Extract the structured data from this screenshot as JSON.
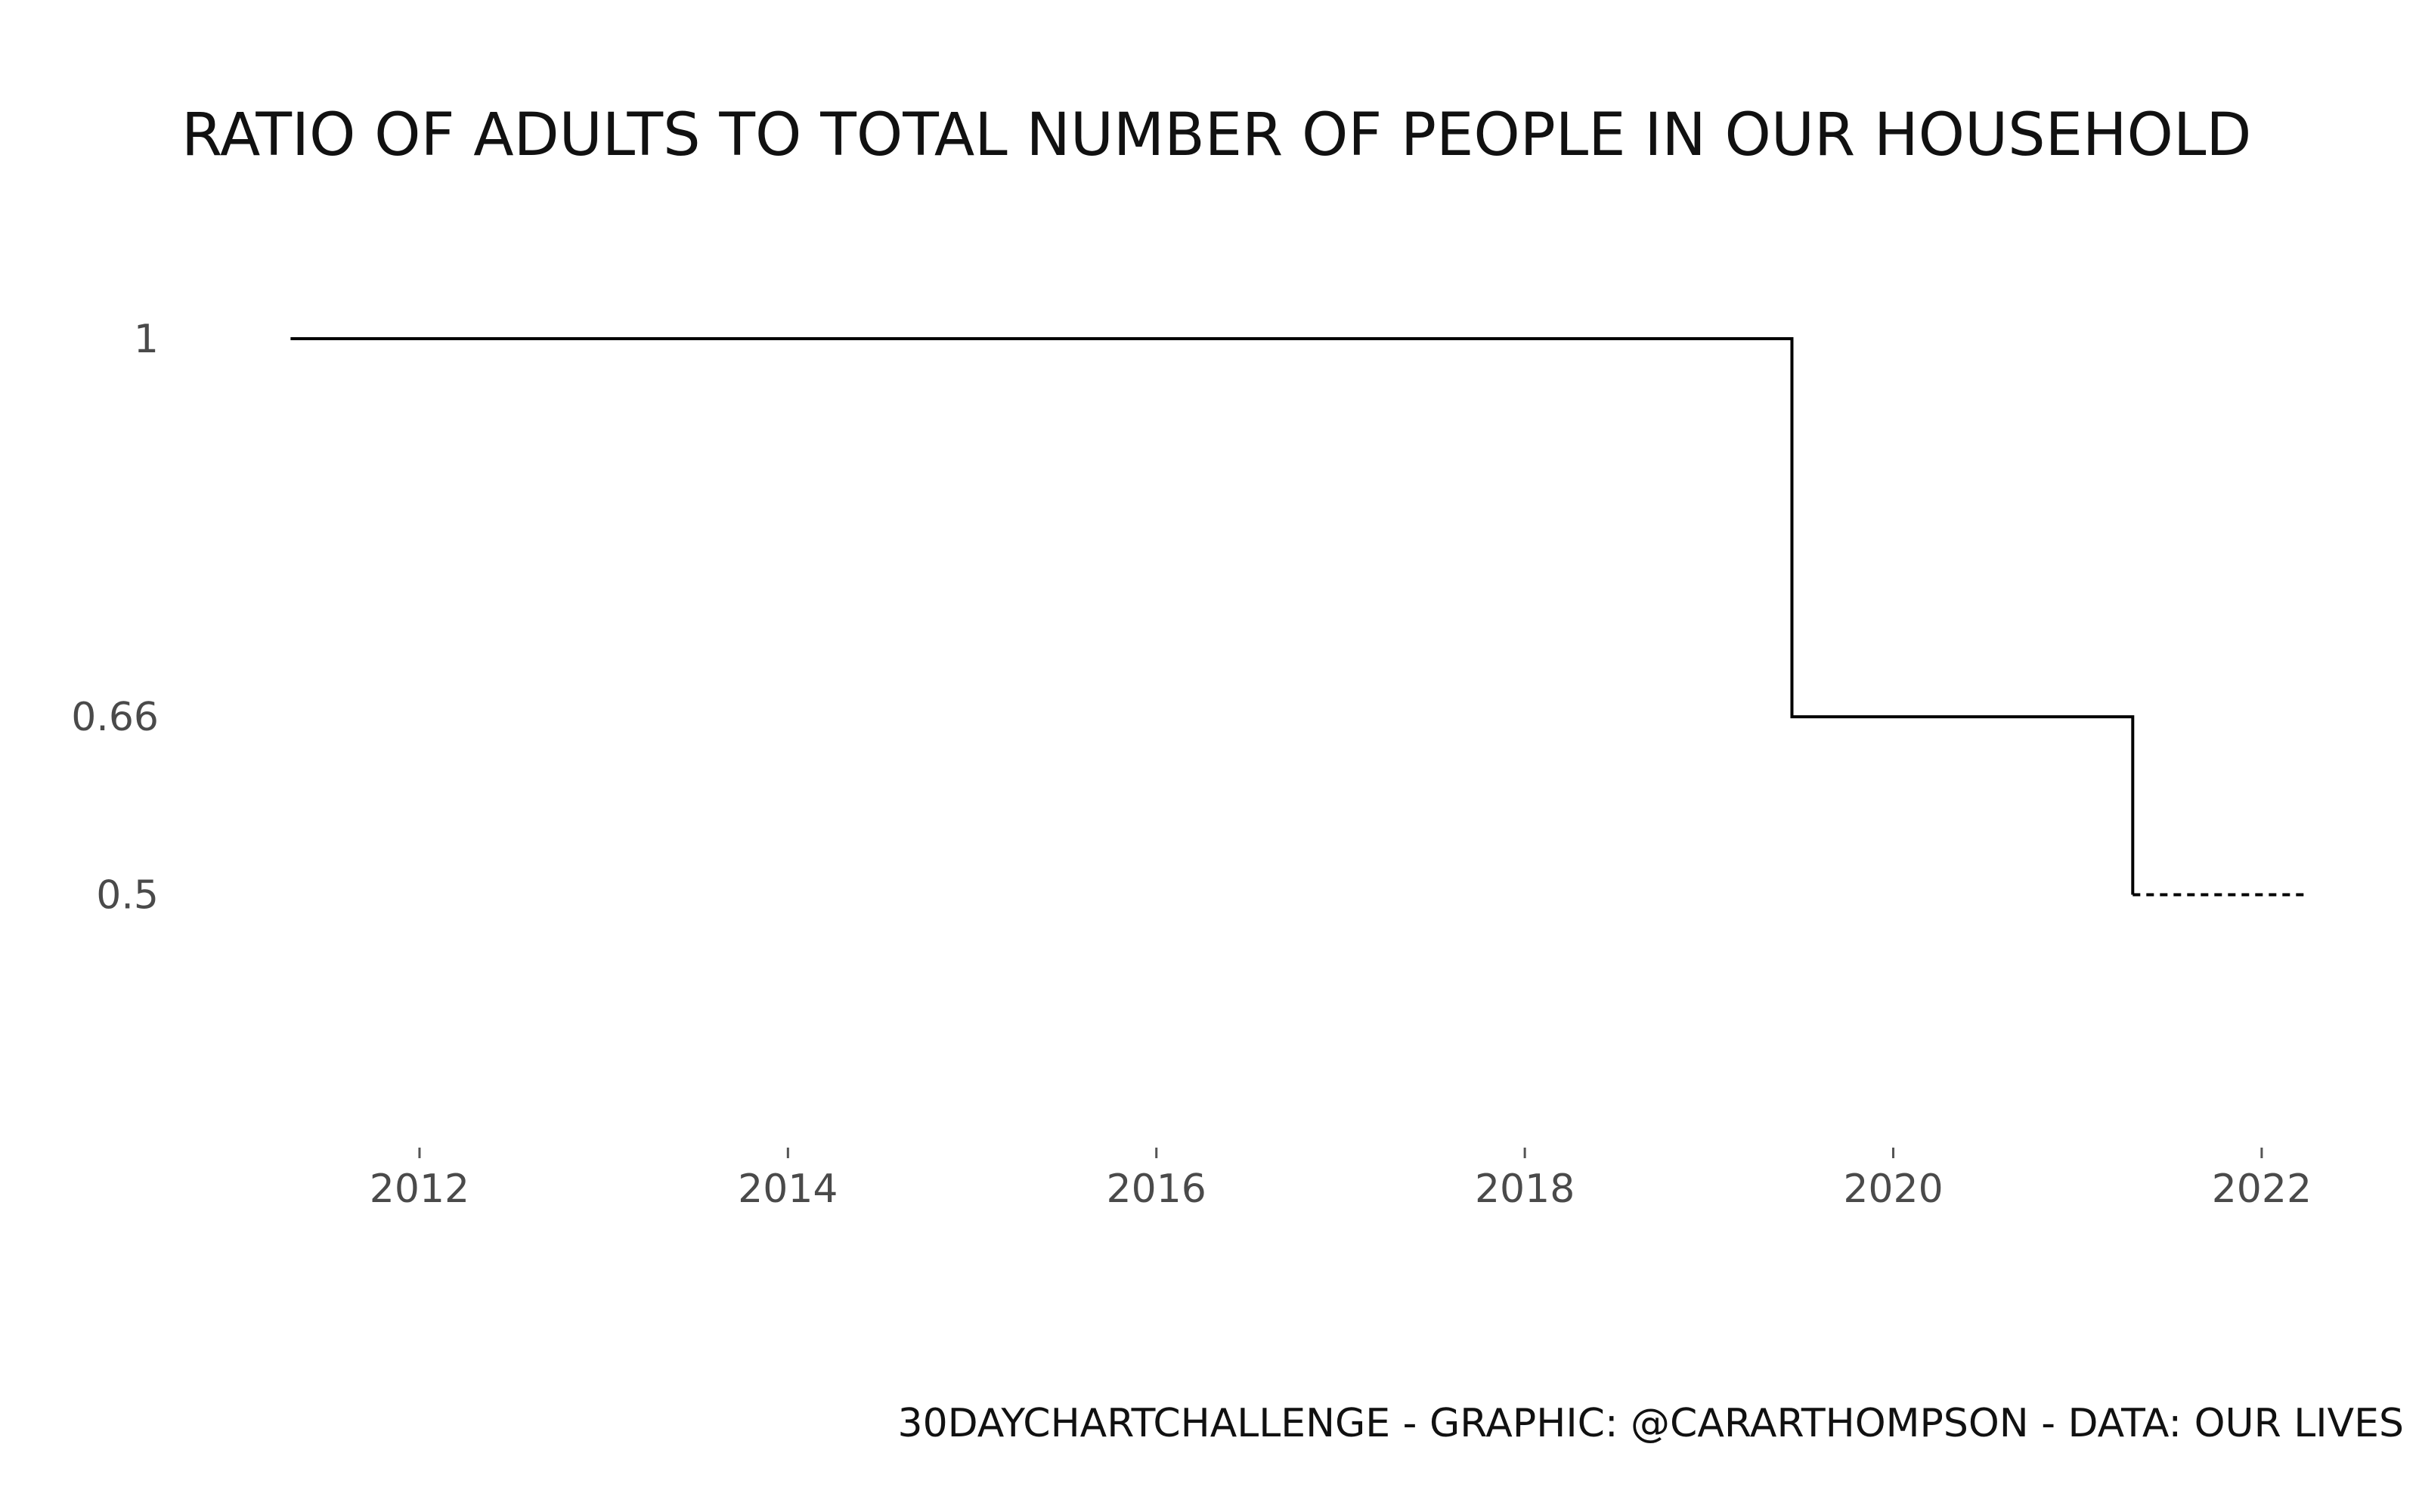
{
  "chart_data": {
    "type": "line",
    "title": "Ratio of adults to total number of people in our household",
    "xlabel": "",
    "ylabel": "",
    "x_ticks": [
      "2012",
      "2014",
      "2016",
      "2018",
      "2020",
      "2022"
    ],
    "y_ticks": [
      "1",
      "0.66",
      "0.5"
    ],
    "y_tick_values": [
      1,
      0.66,
      0.5
    ],
    "x_tick_values": [
      2012,
      2014,
      2016,
      2018,
      2020,
      2022
    ],
    "xlim": [
      2011.2,
      2022.3
    ],
    "ylim": [
      0.38,
      1.07
    ],
    "series": [
      {
        "step": "post",
        "style": "solid",
        "x": [
          2011.3,
          2019.45,
          2021.3
        ],
        "y": [
          1,
          0.66,
          0.5
        ]
      },
      {
        "style": "dotted",
        "x": [
          2021.3,
          2022.25
        ],
        "y": [
          0.5,
          0.5
        ]
      }
    ],
    "grid": false,
    "colors": {
      "line": "#000000",
      "tick_text": "#4a4a4a",
      "background": "#ffffff"
    }
  },
  "caption": "30DayChartChallenge   -   Graphic: @cararthompson   -   Data: our lives"
}
